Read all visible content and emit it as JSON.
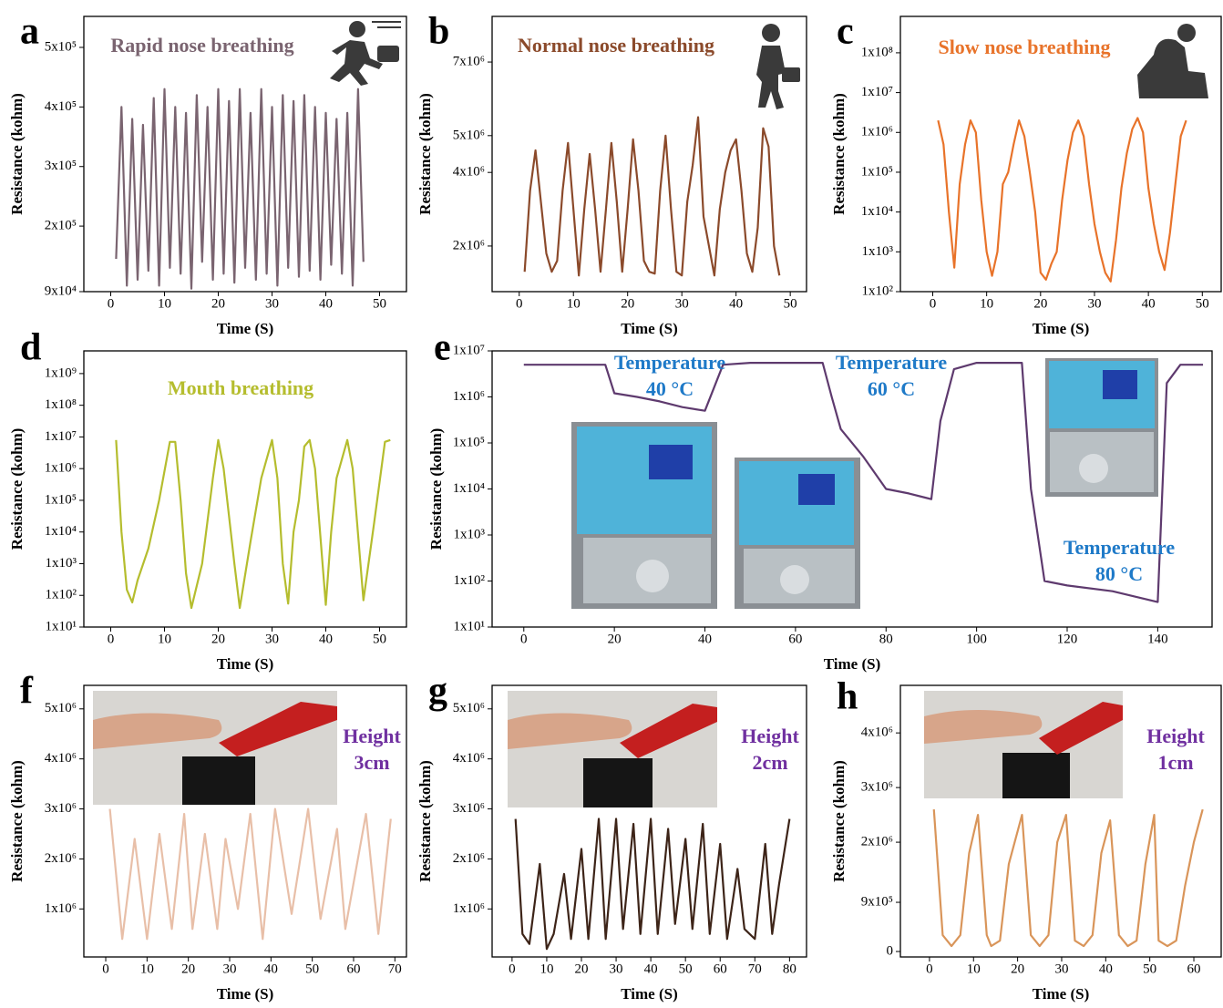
{
  "chart_data": [
    {
      "type": "line",
      "label": "a",
      "title": "Rapid nose breathing",
      "xlabel": "Time (S)",
      "ylabel": "Resistance (kohm)",
      "color": "#7a6470",
      "yscale": "linear",
      "xlim": [
        -5,
        55
      ],
      "xticks": [
        0,
        10,
        20,
        30,
        40,
        50
      ],
      "ylim": [
        90000,
        552000
      ],
      "yticks": [
        {
          "value": 90000,
          "label": "9x10⁴"
        },
        {
          "value": 200000,
          "label": "2x10⁵"
        },
        {
          "value": 300000,
          "label": "3x10⁵"
        },
        {
          "value": 400000,
          "label": "4x10⁵"
        },
        {
          "value": 500000,
          "label": "5x10⁵"
        }
      ],
      "x": [
        1,
        2,
        3,
        4,
        5,
        6,
        7,
        8,
        9,
        10,
        11,
        12,
        13,
        14,
        15,
        16,
        17,
        18,
        19,
        20,
        21,
        22,
        23,
        24,
        25,
        26,
        27,
        28,
        29,
        30,
        31,
        32,
        33,
        34,
        35,
        36,
        37,
        38,
        39,
        40,
        41,
        42,
        43,
        44,
        45,
        46,
        47
      ],
      "values": [
        145000,
        400000,
        100000,
        380000,
        110000,
        370000,
        125000,
        415000,
        100000,
        430000,
        130000,
        400000,
        120000,
        390000,
        95000,
        420000,
        140000,
        400000,
        110000,
        430000,
        120000,
        410000,
        105000,
        430000,
        130000,
        390000,
        110000,
        430000,
        120000,
        400000,
        100000,
        420000,
        130000,
        410000,
        115000,
        420000,
        125000,
        400000,
        110000,
        390000,
        135000,
        380000,
        120000,
        390000,
        100000,
        430000,
        140000
      ]
    },
    {
      "type": "line",
      "label": "b",
      "title": "Normal nose breathing",
      "xlabel": "Time (S)",
      "ylabel": "Resistance (kohm)",
      "color": "#8b4a2b",
      "yscale": "linear",
      "xlim": [
        -5,
        53
      ],
      "xticks": [
        0,
        10,
        20,
        30,
        40,
        50
      ],
      "ylim": [
        760000,
        8240000
      ],
      "yticks": [
        {
          "value": 2000000,
          "label": "2x10⁶"
        },
        {
          "value": 4000000,
          "label": "4x10⁶"
        },
        {
          "value": 5000000,
          "label": "5x10⁶"
        },
        {
          "value": 7000000,
          "label": "7x10⁶"
        }
      ],
      "x": [
        1,
        2,
        3,
        4,
        5,
        6,
        7,
        8,
        9,
        10,
        11,
        12,
        13,
        14,
        15,
        16,
        17,
        18,
        19,
        20,
        21,
        22,
        23,
        24,
        25,
        26,
        27,
        28,
        29,
        30,
        31,
        32,
        33,
        34,
        35,
        36,
        37,
        38,
        39,
        40,
        41,
        42,
        43,
        44,
        45,
        46,
        47,
        48
      ],
      "values": [
        1300000,
        3500000,
        4600000,
        3200000,
        1800000,
        1300000,
        1600000,
        3500000,
        4800000,
        3000000,
        1200000,
        3000000,
        4500000,
        3000000,
        1300000,
        3000000,
        4800000,
        3200000,
        1300000,
        3000000,
        4900000,
        3500000,
        1600000,
        1300000,
        1250000,
        3500000,
        5000000,
        3000000,
        1300000,
        1200000,
        3200000,
        4200000,
        5500000,
        2800000,
        2000000,
        1200000,
        3000000,
        4000000,
        4600000,
        4900000,
        3500000,
        1800000,
        1300000,
        2500000,
        5200000,
        4700000,
        2000000,
        1200000
      ]
    },
    {
      "type": "line",
      "label": "c",
      "title": "Slow nose breathing",
      "xlabel": "Time (S)",
      "ylabel": "Resistance (kohm)",
      "color": "#e8732a",
      "yscale": "log",
      "xlim": [
        -6,
        53.5
      ],
      "xticks": [
        0,
        10,
        20,
        30,
        40,
        50
      ],
      "ylim": [
        100,
        820000000
      ],
      "yticks": [
        {
          "value": 100,
          "label": "1x10²"
        },
        {
          "value": 1000,
          "label": "1x10³"
        },
        {
          "value": 10000,
          "label": "1x10⁴"
        },
        {
          "value": 100000,
          "label": "1x10⁵"
        },
        {
          "value": 1000000,
          "label": "1x10⁶"
        },
        {
          "value": 10000000,
          "label": "1x10⁷"
        },
        {
          "value": 100000000,
          "label": "1x10⁸"
        }
      ],
      "x": [
        1,
        2,
        3,
        4,
        5,
        6,
        7,
        8,
        9,
        10,
        11,
        12,
        13,
        14,
        15,
        16,
        17,
        18,
        19,
        20,
        21,
        22,
        23,
        24,
        25,
        26,
        27,
        28,
        29,
        30,
        31,
        32,
        33,
        34,
        35,
        36,
        37,
        38,
        39,
        40,
        41,
        42,
        43,
        44,
        45,
        46,
        47
      ],
      "values": [
        2000000,
        500000,
        10000,
        400,
        50000,
        500000,
        2000000,
        1000000,
        20000,
        1000,
        250,
        1000,
        50000,
        100000,
        500000,
        2000000,
        800000,
        100000,
        10000,
        300,
        200,
        500,
        1000,
        20000,
        200000,
        1000000,
        2000000,
        800000,
        50000,
        5000,
        1000,
        300,
        180,
        2000,
        40000,
        300000,
        1200000,
        2300000,
        1000000,
        40000,
        5000,
        1000,
        350,
        3000,
        50000,
        800000,
        2000000
      ]
    },
    {
      "type": "line",
      "label": "d",
      "title": "Mouth breathing",
      "xlabel": "Time (S)",
      "ylabel": "Resistance (kohm)",
      "color": "#b5bd2e",
      "yscale": "log",
      "xlim": [
        -5,
        55
      ],
      "xticks": [
        0,
        10,
        20,
        30,
        40,
        50
      ],
      "ylim": [
        10,
        5200000000
      ],
      "yticks": [
        {
          "value": 10,
          "label": "1x10¹"
        },
        {
          "value": 100,
          "label": "1x10²"
        },
        {
          "value": 1000,
          "label": "1x10³"
        },
        {
          "value": 10000,
          "label": "1x10⁴"
        },
        {
          "value": 100000,
          "label": "1x10⁵"
        },
        {
          "value": 1000000,
          "label": "1x10⁶"
        },
        {
          "value": 10000000,
          "label": "1x10⁷"
        },
        {
          "value": 100000000,
          "label": "1x10⁸"
        },
        {
          "value": 1000000000,
          "label": "1x10⁹"
        }
      ],
      "x": [
        1,
        2,
        3,
        4,
        5,
        7,
        9,
        11,
        12,
        13,
        14,
        15,
        17,
        19,
        20,
        21,
        23,
        24,
        26,
        28,
        30,
        31,
        32,
        33,
        34,
        35,
        36,
        37,
        38,
        40,
        41,
        42,
        43,
        44,
        45,
        47,
        49,
        51,
        52
      ],
      "values": [
        8000000,
        10000,
        150,
        60,
        300,
        3000,
        100000,
        7000000,
        7000000,
        100000,
        500,
        40,
        1000,
        500000,
        8000000,
        1000000,
        1000,
        40,
        5000,
        500000,
        8000000,
        500000,
        1000,
        55,
        10000,
        100000,
        5000000,
        8000000,
        1000000,
        50,
        10000,
        500000,
        2000000,
        8000000,
        1000000,
        70,
        20000,
        7000000,
        8000000
      ]
    },
    {
      "type": "line",
      "label": "e",
      "xlabel": "Time (S)",
      "ylabel": "Resistance (kohm)",
      "color": "#5e3a6e",
      "yscale": "log",
      "xlim": [
        -7,
        152
      ],
      "xticks": [
        0,
        20,
        40,
        60,
        80,
        100,
        120,
        140
      ],
      "ylim": [
        10,
        10000000
      ],
      "yticks": [
        {
          "value": 10,
          "label": "1x10¹"
        },
        {
          "value": 100,
          "label": "1x10²"
        },
        {
          "value": 1000,
          "label": "1x10³"
        },
        {
          "value": 10000,
          "label": "1x10⁴"
        },
        {
          "value": 100000,
          "label": "1x10⁵"
        },
        {
          "value": 1000000,
          "label": "1x10⁶"
        },
        {
          "value": 10000000,
          "label": "1x10⁷"
        }
      ],
      "annotations": [
        [
          "Temperature",
          "40 °C"
        ],
        [
          "Temperature",
          "60 °C"
        ],
        [
          "Temperature",
          "80 °C"
        ]
      ],
      "annotation_color": "#1f7ac8",
      "x": [
        0,
        10,
        18,
        20,
        25,
        30,
        35,
        40,
        44,
        50,
        60,
        66,
        68,
        70,
        75,
        80,
        85,
        90,
        92,
        95,
        100,
        110,
        112,
        115,
        120,
        130,
        140,
        142,
        145,
        150
      ],
      "values": [
        5000000,
        5000000,
        5000000,
        1200000,
        1000000,
        800000,
        600000,
        500000,
        5000000,
        5500000,
        5500000,
        5500000,
        1000000,
        200000,
        50000,
        10000,
        8000,
        6000,
        300000,
        4000000,
        5500000,
        5500000,
        10000,
        100,
        80,
        60,
        35,
        2000000,
        5000000,
        5000000
      ]
    },
    {
      "type": "line",
      "label": "f",
      "xlabel": "Time (S)",
      "ylabel": "Resistance (kohm)",
      "color": "#e8bfa8",
      "yscale": "linear",
      "xlim": [
        -5.3,
        72.8
      ],
      "xticks": [
        0,
        10,
        20,
        30,
        40,
        50,
        60,
        70
      ],
      "ylim": [
        40000,
        5470000
      ],
      "yticks": [
        {
          "value": 1000000,
          "label": "1x10⁶"
        },
        {
          "value": 2000000,
          "label": "2x10⁶"
        },
        {
          "value": 3000000,
          "label": "3x10⁶"
        },
        {
          "value": 4000000,
          "label": "4x10⁶"
        },
        {
          "value": 5000000,
          "label": "5x10⁶"
        }
      ],
      "annotations": [
        [
          "Height",
          "3cm"
        ]
      ],
      "annotation_color": "#7030a0",
      "x": [
        1,
        4,
        7,
        10,
        13,
        16,
        19,
        21,
        24,
        27,
        29,
        32,
        35,
        38,
        41,
        45,
        49,
        52,
        56,
        58,
        63,
        66,
        69
      ],
      "values": [
        3000000,
        400000,
        2400000,
        400000,
        2500000,
        600000,
        2900000,
        600000,
        2500000,
        600000,
        2400000,
        1000000,
        2900000,
        400000,
        3000000,
        900000,
        3000000,
        800000,
        2600000,
        600000,
        2900000,
        500000,
        2800000
      ]
    },
    {
      "type": "line",
      "label": "g",
      "xlabel": "Time (S)",
      "ylabel": "Resistance (kohm)",
      "color": "#3d2418",
      "yscale": "linear",
      "xlim": [
        -5.75,
        84.9
      ],
      "xticks": [
        0,
        10,
        20,
        30,
        40,
        50,
        60,
        70,
        80
      ],
      "ylim": [
        40000,
        5470000
      ],
      "yticks": [
        {
          "value": 1000000,
          "label": "1x10⁶"
        },
        {
          "value": 2000000,
          "label": "2x10⁶"
        },
        {
          "value": 3000000,
          "label": "3x10⁶"
        },
        {
          "value": 4000000,
          "label": "4x10⁶"
        },
        {
          "value": 5000000,
          "label": "5x10⁶"
        }
      ],
      "annotations": [
        [
          "Height",
          "2cm"
        ]
      ],
      "annotation_color": "#7030a0",
      "x": [
        1,
        3,
        5,
        8,
        10,
        12,
        15,
        17,
        20,
        22,
        25,
        27,
        30,
        32,
        35,
        37,
        40,
        42,
        45,
        47,
        50,
        52,
        55,
        57,
        60,
        62,
        65,
        67,
        70,
        73,
        75,
        77,
        80
      ],
      "values": [
        2800000,
        500000,
        300000,
        1900000,
        200000,
        500000,
        1700000,
        400000,
        2200000,
        400000,
        2800000,
        400000,
        2800000,
        600000,
        2700000,
        500000,
        2800000,
        500000,
        2600000,
        700000,
        2400000,
        600000,
        2700000,
        500000,
        2300000,
        400000,
        1800000,
        600000,
        400000,
        2300000,
        500000,
        1500000,
        2800000
      ]
    },
    {
      "type": "line",
      "label": "h",
      "xlabel": "Time (S)",
      "ylabel": "Resistance (kohm)",
      "color": "#d9955a",
      "yscale": "linear",
      "xlim": [
        -6.6,
        66.2
      ],
      "xticks": [
        0,
        10,
        20,
        30,
        40,
        50,
        60
      ],
      "ylim": [
        -100000,
        4870000
      ],
      "yticks": [
        0,
        {
          "value": 900000,
          "label": "9x10⁵"
        },
        {
          "value": 2000000,
          "label": "2x10⁶"
        },
        {
          "value": 3000000,
          "label": "3x10⁶"
        },
        {
          "value": 4000000,
          "label": "4x10⁶"
        }
      ],
      "annotations": [
        [
          "Height",
          "1cm"
        ]
      ],
      "annotation_color": "#7030a0",
      "x": [
        1,
        3,
        5,
        7,
        9,
        11,
        13,
        14,
        16,
        18,
        21,
        23,
        25,
        27,
        29,
        31,
        33,
        35,
        37,
        39,
        41,
        43,
        45,
        47,
        49,
        51,
        52,
        54,
        56,
        58,
        60,
        62
      ],
      "values": [
        2600000,
        300000,
        100000,
        300000,
        1800000,
        2500000,
        300000,
        100000,
        200000,
        1600000,
        2500000,
        300000,
        100000,
        300000,
        2000000,
        2500000,
        200000,
        100000,
        300000,
        1800000,
        2400000,
        300000,
        100000,
        200000,
        1600000,
        2500000,
        200000,
        100000,
        200000,
        1200000,
        2000000,
        2600000
      ]
    }
  ]
}
